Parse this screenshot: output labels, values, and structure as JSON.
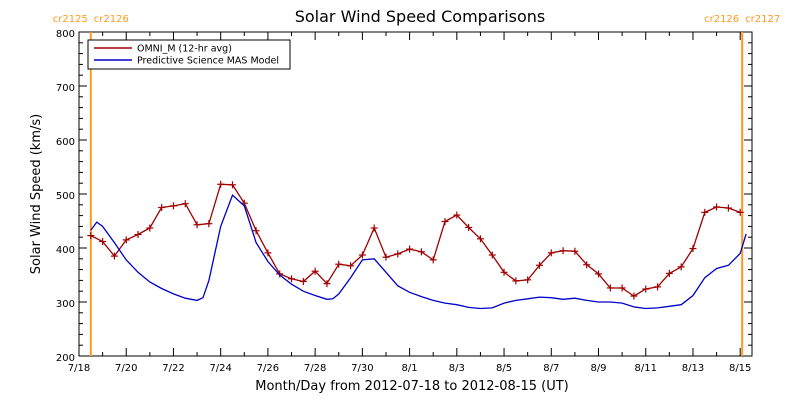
{
  "chart_data": {
    "type": "line",
    "title": "Solar Wind Speed Comparisons",
    "xlabel": "Month/Day from 2012-07-18 to 2012-08-15 (UT)",
    "ylabel": "Solar Wind Speed (km/s)",
    "xlim": [
      "2012-07-18",
      "2012-08-15T12:00"
    ],
    "ylim": [
      200,
      800
    ],
    "x_ticks": [
      {
        "date": "2012-07-18",
        "label": "7/18"
      },
      {
        "date": "2012-07-20",
        "label": "7/20"
      },
      {
        "date": "2012-07-22",
        "label": "7/22"
      },
      {
        "date": "2012-07-24",
        "label": "7/24"
      },
      {
        "date": "2012-07-26",
        "label": "7/26"
      },
      {
        "date": "2012-07-28",
        "label": "7/28"
      },
      {
        "date": "2012-07-30",
        "label": "7/30"
      },
      {
        "date": "2012-08-01",
        "label": "8/1"
      },
      {
        "date": "2012-08-03",
        "label": "8/3"
      },
      {
        "date": "2012-08-05",
        "label": "8/5"
      },
      {
        "date": "2012-08-07",
        "label": "8/7"
      },
      {
        "date": "2012-08-09",
        "label": "8/9"
      },
      {
        "date": "2012-08-11",
        "label": "8/11"
      },
      {
        "date": "2012-08-13",
        "label": "8/13"
      },
      {
        "date": "2012-08-15",
        "label": "8/15"
      }
    ],
    "y_ticks": [
      200,
      300,
      400,
      500,
      600,
      700,
      800
    ],
    "legend": {
      "placement": "top-left",
      "entries": [
        "OMNI_M (12-hr avg)",
        "Predictive Science MAS Model"
      ]
    },
    "carrington_markers": [
      {
        "date": "2012-07-18T12:00",
        "left_label": "cr2125",
        "right_label": "cr2126",
        "color": "#ff9a1f"
      },
      {
        "date": "2012-08-15T02:00",
        "left_label": "cr2126",
        "right_label": "cr2127",
        "color": "#ff9a1f"
      }
    ],
    "series": [
      {
        "name": "OMNI_M (12-hr avg)",
        "color": "#a00000",
        "marker": "plus",
        "points": [
          [
            "2012-07-18T12:00",
            423
          ],
          [
            "2012-07-19T00:00",
            412
          ],
          [
            "2012-07-19T12:00",
            385
          ],
          [
            "2012-07-20T00:00",
            415
          ],
          [
            "2012-07-20T12:00",
            425
          ],
          [
            "2012-07-21T00:00",
            437
          ],
          [
            "2012-07-21T12:00",
            475
          ],
          [
            "2012-07-22T00:00",
            478
          ],
          [
            "2012-07-22T12:00",
            482
          ],
          [
            "2012-07-23T00:00",
            443
          ],
          [
            "2012-07-23T12:00",
            445
          ],
          [
            "2012-07-24T00:00",
            518
          ],
          [
            "2012-07-24T12:00",
            517
          ],
          [
            "2012-07-25T00:00",
            483
          ],
          [
            "2012-07-25T12:00",
            432
          ],
          [
            "2012-07-26T00:00",
            391
          ],
          [
            "2012-07-26T12:00",
            352
          ],
          [
            "2012-07-27T00:00",
            343
          ],
          [
            "2012-07-27T12:00",
            338
          ],
          [
            "2012-07-28T00:00",
            357
          ],
          [
            "2012-07-28T12:00",
            334
          ],
          [
            "2012-07-29T00:00",
            370
          ],
          [
            "2012-07-29T12:00",
            367
          ],
          [
            "2012-07-30T00:00",
            387
          ],
          [
            "2012-07-30T12:00",
            437
          ],
          [
            "2012-07-31T00:00",
            383
          ],
          [
            "2012-07-31T12:00",
            389
          ],
          [
            "2012-08-01T00:00",
            398
          ],
          [
            "2012-08-01T12:00",
            393
          ],
          [
            "2012-08-02T00:00",
            378
          ],
          [
            "2012-08-02T12:00",
            449
          ],
          [
            "2012-08-03T00:00",
            461
          ],
          [
            "2012-08-03T12:00",
            438
          ],
          [
            "2012-08-04T00:00",
            417
          ],
          [
            "2012-08-04T12:00",
            387
          ],
          [
            "2012-08-05T00:00",
            355
          ],
          [
            "2012-08-05T12:00",
            339
          ],
          [
            "2012-08-06T00:00",
            341
          ],
          [
            "2012-08-06T12:00",
            368
          ],
          [
            "2012-08-07T00:00",
            391
          ],
          [
            "2012-08-07T12:00",
            395
          ],
          [
            "2012-08-08T00:00",
            394
          ],
          [
            "2012-08-08T12:00",
            369
          ],
          [
            "2012-08-09T00:00",
            352
          ],
          [
            "2012-08-09T12:00",
            326
          ],
          [
            "2012-08-10T00:00",
            326
          ],
          [
            "2012-08-10T12:00",
            311
          ],
          [
            "2012-08-11T00:00",
            324
          ],
          [
            "2012-08-11T12:00",
            328
          ],
          [
            "2012-08-12T00:00",
            353
          ],
          [
            "2012-08-12T12:00",
            365
          ],
          [
            "2012-08-13T00:00",
            399
          ],
          [
            "2012-08-13T12:00",
            466
          ],
          [
            "2012-08-14T00:00",
            476
          ],
          [
            "2012-08-14T12:00",
            474
          ],
          [
            "2012-08-15T00:00",
            466
          ]
        ]
      },
      {
        "name": "Predictive Science MAS Model",
        "color": "#0000c8",
        "marker": "none",
        "points": [
          [
            "2012-07-18T12:00",
            433
          ],
          [
            "2012-07-18T18:00",
            448
          ],
          [
            "2012-07-19T00:00",
            440
          ],
          [
            "2012-07-19T12:00",
            410
          ],
          [
            "2012-07-20T00:00",
            378
          ],
          [
            "2012-07-20T12:00",
            355
          ],
          [
            "2012-07-21T00:00",
            337
          ],
          [
            "2012-07-21T12:00",
            325
          ],
          [
            "2012-07-22T00:00",
            315
          ],
          [
            "2012-07-22T12:00",
            307
          ],
          [
            "2012-07-23T00:00",
            303
          ],
          [
            "2012-07-23T06:00",
            308
          ],
          [
            "2012-07-23T12:00",
            340
          ],
          [
            "2012-07-24T00:00",
            440
          ],
          [
            "2012-07-24T12:00",
            498
          ],
          [
            "2012-07-25T00:00",
            478
          ],
          [
            "2012-07-25T12:00",
            410
          ],
          [
            "2012-07-26T00:00",
            375
          ],
          [
            "2012-07-26T12:00",
            350
          ],
          [
            "2012-07-27T00:00",
            333
          ],
          [
            "2012-07-27T12:00",
            320
          ],
          [
            "2012-07-28T00:00",
            312
          ],
          [
            "2012-07-28T12:00",
            305
          ],
          [
            "2012-07-28T18:00",
            306
          ],
          [
            "2012-07-29T00:00",
            315
          ],
          [
            "2012-07-29T12:00",
            345
          ],
          [
            "2012-07-30T00:00",
            378
          ],
          [
            "2012-07-30T12:00",
            380
          ],
          [
            "2012-07-31T00:00",
            355
          ],
          [
            "2012-07-31T12:00",
            330
          ],
          [
            "2012-08-01T00:00",
            318
          ],
          [
            "2012-08-01T12:00",
            310
          ],
          [
            "2012-08-02T00:00",
            303
          ],
          [
            "2012-08-02T12:00",
            298
          ],
          [
            "2012-08-03T00:00",
            295
          ],
          [
            "2012-08-03T12:00",
            290
          ],
          [
            "2012-08-04T00:00",
            288
          ],
          [
            "2012-08-04T12:00",
            289
          ],
          [
            "2012-08-05T00:00",
            298
          ],
          [
            "2012-08-05T12:00",
            303
          ],
          [
            "2012-08-06T00:00",
            306
          ],
          [
            "2012-08-06T12:00",
            309
          ],
          [
            "2012-08-07T00:00",
            308
          ],
          [
            "2012-08-07T12:00",
            305
          ],
          [
            "2012-08-08T00:00",
            307
          ],
          [
            "2012-08-08T12:00",
            303
          ],
          [
            "2012-08-09T00:00",
            300
          ],
          [
            "2012-08-09T12:00",
            300
          ],
          [
            "2012-08-10T00:00",
            298
          ],
          [
            "2012-08-10T12:00",
            291
          ],
          [
            "2012-08-11T00:00",
            288
          ],
          [
            "2012-08-11T12:00",
            289
          ],
          [
            "2012-08-12T00:00",
            292
          ],
          [
            "2012-08-12T12:00",
            295
          ],
          [
            "2012-08-13T00:00",
            312
          ],
          [
            "2012-08-13T12:00",
            345
          ],
          [
            "2012-08-14T00:00",
            362
          ],
          [
            "2012-08-14T12:00",
            368
          ],
          [
            "2012-08-15T00:00",
            390
          ],
          [
            "2012-08-15T06:00",
            426
          ]
        ]
      }
    ]
  }
}
